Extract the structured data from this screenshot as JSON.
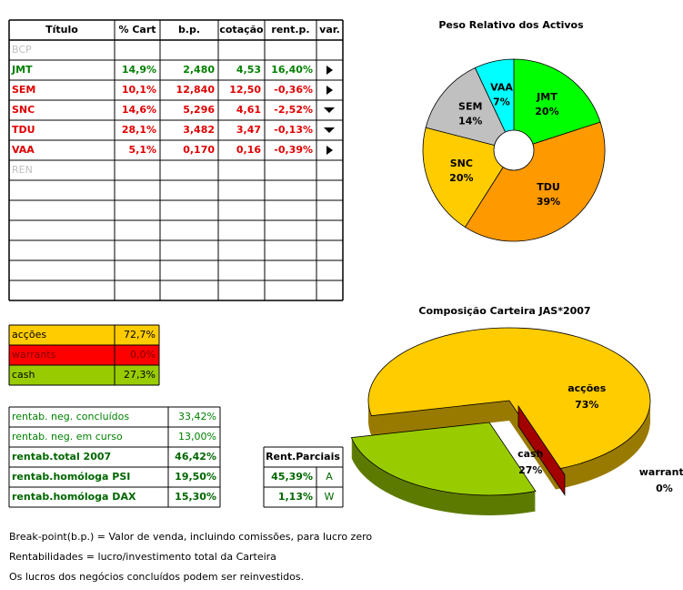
{
  "holdings_table": {
    "headers": [
      "Título",
      "% Cart",
      "b.p.",
      "cotação",
      "rent.p.",
      "var."
    ],
    "rows": [
      {
        "ticker": "BCP",
        "color": "#c0c0c0"
      },
      {
        "ticker": "JMT",
        "pct": "14,9%",
        "bp": "2,480",
        "price": "4,53",
        "rent": "16,40%",
        "arrow": "right",
        "color": "#008000"
      },
      {
        "ticker": "SEM",
        "pct": "10,1%",
        "bp": "12,840",
        "price": "12,50",
        "rent": "-0,36%",
        "arrow": "right",
        "color": "#e00000"
      },
      {
        "ticker": "SNC",
        "pct": "14,6%",
        "bp": "5,296",
        "price": "4,61",
        "rent": "-2,52%",
        "arrow": "down",
        "color": "#e00000"
      },
      {
        "ticker": "TDU",
        "pct": "28,1%",
        "bp": "3,482",
        "price": "3,47",
        "rent": "-0,13%",
        "arrow": "down",
        "color": "#e00000"
      },
      {
        "ticker": "VAA",
        "pct": "5,1%",
        "bp": "0,170",
        "price": "0,16",
        "rent": "-0,39%",
        "arrow": "right",
        "color": "#e00000"
      },
      {
        "ticker": "REN",
        "color": "#c0c0c0"
      }
    ]
  },
  "allocation_table": {
    "rows": [
      {
        "label": "acções",
        "value": "72,7%",
        "color": "#ffcc00"
      },
      {
        "label": "warrants",
        "value": "0,0%",
        "color": "#ff0000"
      },
      {
        "label": "cash",
        "value": "27,3%",
        "color": "#99cc00"
      }
    ]
  },
  "returns_table": {
    "rows": [
      {
        "label": "rentab. neg. concluídos",
        "value": "33,42%",
        "bold": false
      },
      {
        "label": "rentab. neg. em curso",
        "value": "13,00%",
        "bold": false
      },
      {
        "label": "rentab.total 2007",
        "value": "46,42%",
        "bold": true
      },
      {
        "label": "rentab.homóloga PSI",
        "value": "19,50%",
        "bold": true
      },
      {
        "label": "rentab.homóloga DAX",
        "value": "15,30%",
        "bold": true
      }
    ]
  },
  "partial_table": {
    "title": "Rent.Parciais",
    "rows": [
      {
        "value": "45,39%",
        "code": "A"
      },
      {
        "value": "1,13%",
        "code": "W"
      }
    ]
  },
  "notes": [
    "Break-point(b.p.) = Valor de venda, incluindo comissões, para lucro zero",
    "Rentabilidades = lucro/investimento total da Carteira",
    "Os lucros dos negócios concluídos podem ser reinvestidos."
  ],
  "chart_data": [
    {
      "type": "pie",
      "title": "Peso Relativo dos Activos",
      "categories": [
        "JMT",
        "TDU",
        "SNC",
        "SEM",
        "VAA"
      ],
      "values": [
        20,
        39,
        20,
        14,
        7
      ],
      "value_labels": [
        "20%",
        "39%",
        "20%",
        "14%",
        "7%"
      ],
      "colors": [
        "#00ff00",
        "#ff9900",
        "#ffcc00",
        "#c0c0c0",
        "#00ffff"
      ]
    },
    {
      "type": "pie3d",
      "title": "Composição Carteira JAS*2007",
      "categories": [
        "acções",
        "warrants",
        "cash"
      ],
      "values": [
        73,
        0,
        27
      ],
      "value_labels": [
        "73%",
        "0%",
        "27%"
      ],
      "colors": [
        "#ffcc00",
        "#cc0000",
        "#99cc00"
      ]
    }
  ]
}
